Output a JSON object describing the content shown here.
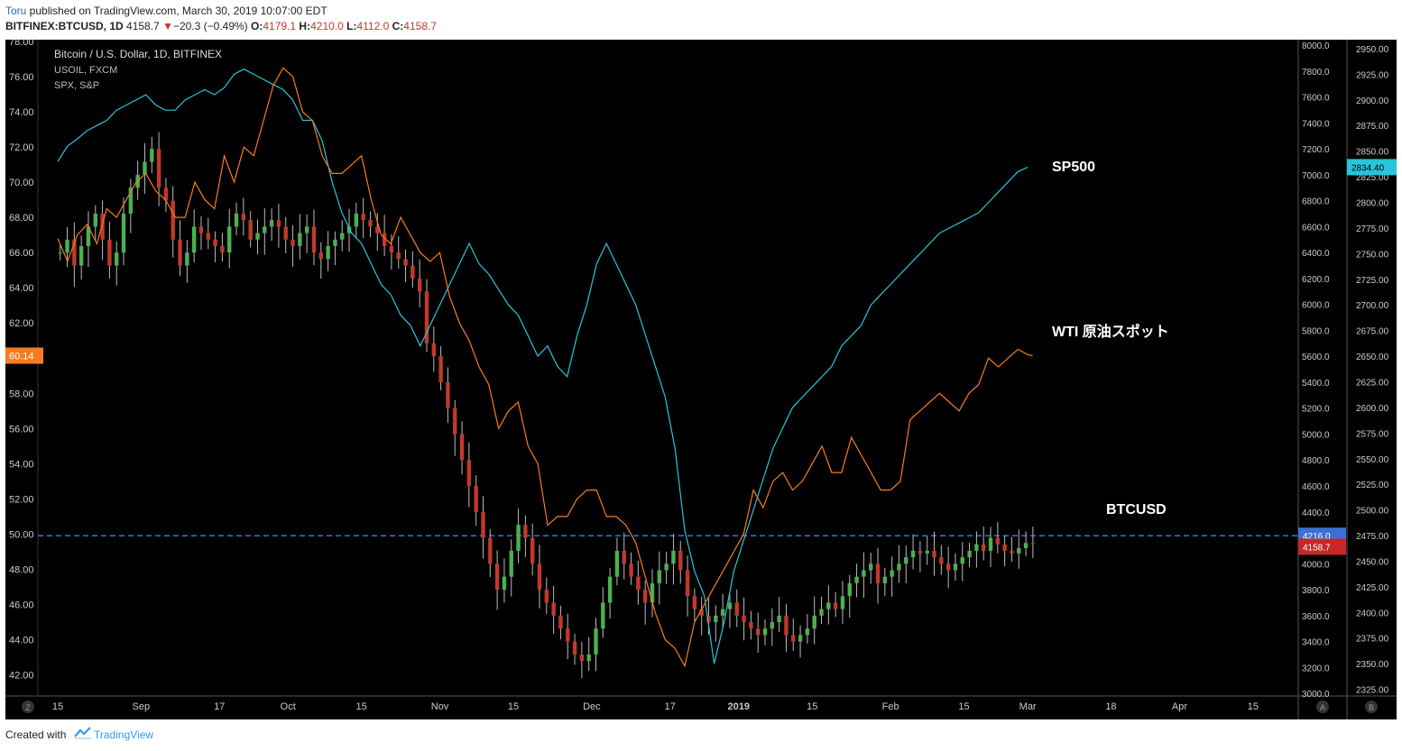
{
  "header": {
    "author": "Toru",
    "published": " published on TradingView.com, March 30, 2019 10:07:00 EDT",
    "symbol": "BITFINEX:BTCUSD, 1D",
    "last": "4158.7",
    "change_arrow": "▼",
    "change": "−20.3 (−0.49%)",
    "o_label": "O:",
    "o_value": "4179.1",
    "h_label": "H:",
    "h_value": "4210.0",
    "l_label": "L:",
    "l_value": "4112.0",
    "c_label": "C:",
    "c_value": "4158.7"
  },
  "legend": {
    "main": "Bitcoin / U.S. Dollar, 1D, BITFINEX",
    "line1": "USOIL, FXCM",
    "line2": "SPX, S&P"
  },
  "footer": {
    "created_with": "Created with",
    "brand": "TradingView"
  },
  "colors": {
    "background": "#000000",
    "up": "#26a69a",
    "up_body": "#4caf50",
    "down": "#e53935",
    "down_body": "#c0392b",
    "oil": "#f57c1f",
    "spx": "#26c6da",
    "level_line": "#3b6fd6",
    "axis_text": "#cccccc"
  },
  "chart_data": {
    "type": "candlestick+line",
    "x_tick_labels": [
      "15",
      "Sep",
      "17",
      "Oct",
      "15",
      "Nov",
      "15",
      "Dec",
      "17",
      "2019",
      "15",
      "Feb",
      "15",
      "Mar",
      "18",
      "Apr",
      "15"
    ],
    "x_tick_days": [
      0,
      17,
      33,
      47,
      62,
      78,
      93,
      109,
      125,
      139,
      154,
      170,
      185,
      198,
      215,
      229,
      244
    ],
    "x_start_label": "2018-08-15",
    "annotations": [
      {
        "text": "SP500",
        "series": "spx"
      },
      {
        "text": "WTI 原油スポット",
        "series": "oil"
      },
      {
        "text": "BTCUSD",
        "series": "btc"
      }
    ],
    "axes": {
      "left": {
        "name": "USOIL",
        "min": 41,
        "max": 78,
        "ticks": [
          42,
          44,
          46,
          48,
          50,
          52,
          54,
          56,
          58,
          60,
          62,
          64,
          66,
          68,
          70,
          72,
          74,
          76,
          78
        ],
        "current": "60.14"
      },
      "right1": {
        "name": "BTCUSD",
        "min": 2980,
        "max": 8000,
        "ticks": [
          3000,
          3200,
          3400,
          3600,
          3800,
          4000,
          4200,
          4400,
          4600,
          4800,
          5000,
          5200,
          5400,
          5600,
          5800,
          6000,
          6200,
          6400,
          6600,
          6800,
          7000,
          7200,
          7400,
          7600,
          7800,
          8000
        ],
        "level": "4216.0",
        "current": "4158.7"
      },
      "right2": {
        "name": "SPX",
        "min": 2322,
        "max": 2957,
        "ticks": [
          2325,
          2350,
          2375,
          2400,
          2425,
          2450,
          2475,
          2500,
          2525,
          2550,
          2575,
          2600,
          2625,
          2650,
          2675,
          2700,
          2725,
          2750,
          2775,
          2800,
          2825,
          2850,
          2875,
          2900,
          2925,
          2950
        ],
        "current": "2834.40"
      }
    },
    "series": [
      {
        "name": "USOIL",
        "type": "line",
        "points": [
          [
            0,
            66.8
          ],
          [
            2,
            65.5
          ],
          [
            4,
            67.0
          ],
          [
            6,
            67.6
          ],
          [
            8,
            66.5
          ],
          [
            10,
            68.5
          ],
          [
            12,
            68.0
          ],
          [
            14,
            69.0
          ],
          [
            16,
            70.0
          ],
          [
            18,
            70.5
          ],
          [
            20,
            69.5
          ],
          [
            22,
            69.0
          ],
          [
            24,
            68.0
          ],
          [
            26,
            68.0
          ],
          [
            28,
            70.0
          ],
          [
            30,
            69.0
          ],
          [
            32,
            68.5
          ],
          [
            34,
            71.5
          ],
          [
            36,
            70.0
          ],
          [
            38,
            72.0
          ],
          [
            40,
            71.5
          ],
          [
            42,
            73.5
          ],
          [
            44,
            75.5
          ],
          [
            46,
            76.5
          ],
          [
            48,
            76.0
          ],
          [
            50,
            74.0
          ],
          [
            52,
            73.5
          ],
          [
            54,
            71.5
          ],
          [
            56,
            70.5
          ],
          [
            58,
            70.5
          ],
          [
            60,
            71.0
          ],
          [
            62,
            71.5
          ],
          [
            64,
            69.0
          ],
          [
            66,
            67.0
          ],
          [
            68,
            66.5
          ],
          [
            70,
            68.0
          ],
          [
            72,
            67.0
          ],
          [
            74,
            66.0
          ],
          [
            76,
            65.5
          ],
          [
            78,
            66.0
          ],
          [
            80,
            63.5
          ],
          [
            82,
            62.0
          ],
          [
            84,
            61.0
          ],
          [
            86,
            59.5
          ],
          [
            88,
            58.5
          ],
          [
            90,
            56.0
          ],
          [
            92,
            57.0
          ],
          [
            94,
            57.5
          ],
          [
            96,
            55.0
          ],
          [
            98,
            54.0
          ],
          [
            100,
            50.5
          ],
          [
            102,
            51.0
          ],
          [
            104,
            51.0
          ],
          [
            106,
            52.0
          ],
          [
            108,
            52.5
          ],
          [
            110,
            52.5
          ],
          [
            112,
            51.0
          ],
          [
            114,
            51.0
          ],
          [
            116,
            50.5
          ],
          [
            118,
            49.5
          ],
          [
            120,
            47.5
          ],
          [
            122,
            45.5
          ],
          [
            124,
            44.0
          ],
          [
            126,
            43.5
          ],
          [
            128,
            42.5
          ],
          [
            130,
            45.0
          ],
          [
            132,
            46.0
          ],
          [
            134,
            47.0
          ],
          [
            136,
            48.0
          ],
          [
            138,
            49.0
          ],
          [
            140,
            50.0
          ],
          [
            142,
            52.5
          ],
          [
            144,
            51.5
          ],
          [
            146,
            53.0
          ],
          [
            148,
            53.5
          ],
          [
            150,
            52.5
          ],
          [
            152,
            53.0
          ],
          [
            154,
            54.0
          ],
          [
            156,
            55.0
          ],
          [
            158,
            53.5
          ],
          [
            160,
            53.5
          ],
          [
            162,
            55.5
          ],
          [
            164,
            54.5
          ],
          [
            166,
            53.5
          ],
          [
            168,
            52.5
          ],
          [
            170,
            52.5
          ],
          [
            172,
            53.0
          ],
          [
            174,
            56.5
          ],
          [
            176,
            57.0
          ],
          [
            178,
            57.5
          ],
          [
            180,
            58.0
          ],
          [
            182,
            57.5
          ],
          [
            184,
            57.0
          ],
          [
            186,
            58.0
          ],
          [
            188,
            58.5
          ],
          [
            190,
            60.0
          ],
          [
            192,
            59.5
          ],
          [
            194,
            60.0
          ],
          [
            196,
            60.5
          ],
          [
            198,
            60.2
          ],
          [
            199,
            60.14
          ]
        ]
      },
      {
        "name": "SPX",
        "type": "line",
        "points": [
          [
            0,
            2840
          ],
          [
            2,
            2855
          ],
          [
            4,
            2862
          ],
          [
            6,
            2870
          ],
          [
            8,
            2875
          ],
          [
            10,
            2880
          ],
          [
            12,
            2890
          ],
          [
            14,
            2895
          ],
          [
            16,
            2900
          ],
          [
            18,
            2905
          ],
          [
            20,
            2895
          ],
          [
            22,
            2890
          ],
          [
            24,
            2890
          ],
          [
            26,
            2900
          ],
          [
            28,
            2905
          ],
          [
            30,
            2910
          ],
          [
            32,
            2905
          ],
          [
            34,
            2912
          ],
          [
            36,
            2925
          ],
          [
            38,
            2930
          ],
          [
            40,
            2925
          ],
          [
            42,
            2920
          ],
          [
            44,
            2915
          ],
          [
            46,
            2910
          ],
          [
            48,
            2900
          ],
          [
            50,
            2880
          ],
          [
            52,
            2880
          ],
          [
            54,
            2860
          ],
          [
            56,
            2820
          ],
          [
            58,
            2790
          ],
          [
            60,
            2770
          ],
          [
            62,
            2760
          ],
          [
            64,
            2740
          ],
          [
            66,
            2720
          ],
          [
            68,
            2710
          ],
          [
            70,
            2690
          ],
          [
            72,
            2680
          ],
          [
            74,
            2660
          ],
          [
            76,
            2680
          ],
          [
            78,
            2700
          ],
          [
            80,
            2720
          ],
          [
            82,
            2740
          ],
          [
            84,
            2760
          ],
          [
            86,
            2740
          ],
          [
            88,
            2730
          ],
          [
            90,
            2715
          ],
          [
            92,
            2700
          ],
          [
            94,
            2690
          ],
          [
            96,
            2670
          ],
          [
            98,
            2650
          ],
          [
            100,
            2660
          ],
          [
            102,
            2640
          ],
          [
            104,
            2630
          ],
          [
            106,
            2670
          ],
          [
            108,
            2700
          ],
          [
            110,
            2740
          ],
          [
            112,
            2760
          ],
          [
            114,
            2740
          ],
          [
            116,
            2720
          ],
          [
            118,
            2700
          ],
          [
            120,
            2670
          ],
          [
            122,
            2640
          ],
          [
            124,
            2610
          ],
          [
            126,
            2560
          ],
          [
            128,
            2480
          ],
          [
            130,
            2440
          ],
          [
            132,
            2416
          ],
          [
            134,
            2350
          ],
          [
            136,
            2390
          ],
          [
            138,
            2440
          ],
          [
            140,
            2470
          ],
          [
            142,
            2500
          ],
          [
            144,
            2530
          ],
          [
            146,
            2560
          ],
          [
            148,
            2580
          ],
          [
            150,
            2600
          ],
          [
            152,
            2610
          ],
          [
            154,
            2620
          ],
          [
            156,
            2630
          ],
          [
            158,
            2640
          ],
          [
            160,
            2660
          ],
          [
            162,
            2670
          ],
          [
            164,
            2680
          ],
          [
            166,
            2700
          ],
          [
            168,
            2710
          ],
          [
            170,
            2720
          ],
          [
            172,
            2730
          ],
          [
            174,
            2740
          ],
          [
            176,
            2750
          ],
          [
            178,
            2760
          ],
          [
            180,
            2770
          ],
          [
            182,
            2775
          ],
          [
            184,
            2780
          ],
          [
            186,
            2785
          ],
          [
            188,
            2790
          ],
          [
            190,
            2800
          ],
          [
            192,
            2810
          ],
          [
            194,
            2820
          ],
          [
            196,
            2830
          ],
          [
            198,
            2834.4
          ]
        ]
      },
      {
        "name": "BTCUSD",
        "type": "candlestick",
        "closes_approx": [
          6400,
          6500,
          6300,
          6450,
          6600,
          6700,
          6500,
          6300,
          6400,
          6700,
          6900,
          7000,
          7100,
          7200,
          6900,
          6800,
          6500,
          6300,
          6400,
          6600,
          6550,
          6500,
          6450,
          6400,
          6600,
          6700,
          6650,
          6500,
          6550,
          6600,
          6650,
          6600,
          6500,
          6450,
          6550,
          6600,
          6400,
          6350,
          6450,
          6500,
          6550,
          6600,
          6700,
          6650,
          6600,
          6550,
          6450,
          6400,
          6350,
          6300,
          6200,
          6100,
          5700,
          5600,
          5400,
          5200,
          5000,
          4800,
          4600,
          4400,
          4200,
          4000,
          3800,
          3900,
          4100,
          4300,
          4200,
          4000,
          3800,
          3700,
          3600,
          3500,
          3400,
          3300,
          3250,
          3300,
          3500,
          3700,
          3900,
          4100,
          4000,
          3900,
          3800,
          3700,
          3850,
          3950,
          4000,
          4100,
          3950,
          3750,
          3650,
          3600,
          3550,
          3600,
          3650,
          3700,
          3600,
          3550,
          3500,
          3450,
          3500,
          3550,
          3600,
          3450,
          3400,
          3450,
          3500,
          3600,
          3650,
          3700,
          3650,
          3750,
          3850,
          3900,
          3950,
          4000,
          3850,
          3900,
          3950,
          4000,
          4050,
          4100,
          4080,
          4100,
          4050,
          4000,
          3950,
          4000,
          4050,
          4100,
          4150,
          4100,
          4200,
          4150,
          4100,
          4080,
          4120,
          4160,
          4158.7
        ]
      }
    ]
  }
}
